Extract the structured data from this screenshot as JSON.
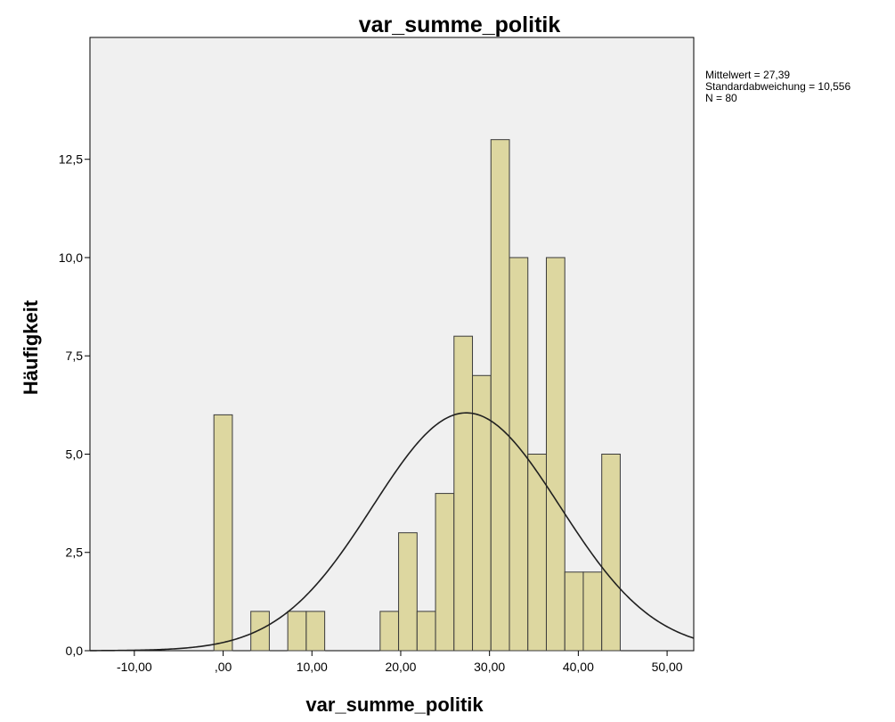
{
  "chart_data": {
    "type": "bar",
    "title": "var_summe_politik",
    "xlabel": "var_summe_politik",
    "ylabel": "Häufigkeit",
    "xlim": [
      -15,
      53
    ],
    "ylim": [
      0,
      15.6
    ],
    "bin_width": 2.08,
    "x_ticks": [
      {
        "value": -10,
        "label": "-10,00"
      },
      {
        "value": 0,
        "label": ",00"
      },
      {
        "value": 10,
        "label": "10,00"
      },
      {
        "value": 20,
        "label": "20,00"
      },
      {
        "value": 30,
        "label": "30,00"
      },
      {
        "value": 40,
        "label": "40,00"
      },
      {
        "value": 50,
        "label": "50,00"
      }
    ],
    "y_ticks": [
      {
        "value": 0,
        "label": "0,0"
      },
      {
        "value": 2.5,
        "label": "2,5"
      },
      {
        "value": 5,
        "label": "5,0"
      },
      {
        "value": 7.5,
        "label": "7,5"
      },
      {
        "value": 10,
        "label": "10,0"
      },
      {
        "value": 12.5,
        "label": "12,5"
      }
    ],
    "bins": [
      {
        "x_start": -1.04,
        "count": 6
      },
      {
        "x_start": 3.12,
        "count": 1
      },
      {
        "x_start": 7.28,
        "count": 1
      },
      {
        "x_start": 9.36,
        "count": 1
      },
      {
        "x_start": 17.68,
        "count": 1
      },
      {
        "x_start": 19.76,
        "count": 3
      },
      {
        "x_start": 21.84,
        "count": 1
      },
      {
        "x_start": 23.92,
        "count": 4
      },
      {
        "x_start": 26.0,
        "count": 8
      },
      {
        "x_start": 28.08,
        "count": 7
      },
      {
        "x_start": 30.16,
        "count": 13
      },
      {
        "x_start": 32.24,
        "count": 10
      },
      {
        "x_start": 34.32,
        "count": 5
      },
      {
        "x_start": 36.4,
        "count": 10
      },
      {
        "x_start": 38.48,
        "count": 2
      },
      {
        "x_start": 40.56,
        "count": 2
      },
      {
        "x_start": 42.64,
        "count": 5
      }
    ],
    "normal_curve": {
      "mean": 27.39,
      "sd": 10.556,
      "peak": 6.05
    },
    "stats": [
      "Mittelwert = 27,39",
      "Standardabweichung = 10,556",
      "N = 80"
    ],
    "grid": false,
    "colors": {
      "plot_background": "#f0f0f0",
      "bar_fill": "#ddd7a0",
      "bar_stroke": "#3a3a3a",
      "curve": "#202020"
    }
  }
}
